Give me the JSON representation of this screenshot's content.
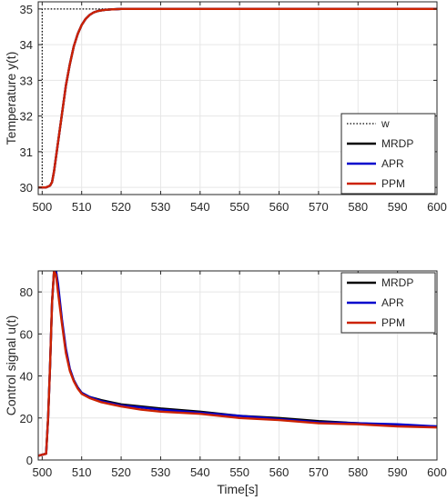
{
  "chart_data": [
    {
      "type": "line",
      "xlabel": "",
      "ylabel": "Temperature y(t)",
      "xlim": [
        499,
        600
      ],
      "ylim": [
        29.8,
        35.2
      ],
      "xticks": [
        500,
        510,
        520,
        530,
        540,
        550,
        560,
        570,
        580,
        590,
        600
      ],
      "yticks": [
        30,
        31,
        32,
        33,
        34,
        35
      ],
      "grid": true,
      "legend_position": "right",
      "series": [
        {
          "name": "w",
          "color": "#000000",
          "style": "dotted",
          "x": [
            499,
            500,
            500,
            600
          ],
          "y": [
            30,
            30,
            35,
            35
          ]
        },
        {
          "name": "MRDP",
          "color": "#000000",
          "style": "solid",
          "x": [
            499,
            501,
            502,
            502.5,
            503,
            504,
            505,
            506,
            507,
            508,
            509,
            510,
            511,
            512,
            513,
            514,
            515,
            516,
            518,
            520,
            525,
            530,
            540,
            550,
            560,
            570,
            580,
            590,
            600
          ],
          "y": [
            30,
            30,
            30.05,
            30.15,
            30.45,
            31.25,
            32.05,
            32.85,
            33.45,
            33.95,
            34.3,
            34.55,
            34.72,
            34.83,
            34.9,
            34.94,
            34.96,
            34.975,
            34.99,
            35,
            35,
            35,
            35,
            35,
            35,
            35,
            35,
            35,
            35
          ]
        },
        {
          "name": "APR",
          "color": "#0000cc",
          "style": "solid",
          "x": [
            499,
            501,
            502,
            502.5,
            503,
            504,
            505,
            506,
            507,
            508,
            509,
            510,
            511,
            512,
            513,
            514,
            515,
            516,
            518,
            520,
            525,
            530,
            540,
            550,
            560,
            570,
            580,
            590,
            600
          ],
          "y": [
            30,
            30,
            30.05,
            30.15,
            30.45,
            31.25,
            32.05,
            32.85,
            33.45,
            33.95,
            34.3,
            34.55,
            34.72,
            34.83,
            34.9,
            34.94,
            34.96,
            34.975,
            34.99,
            35,
            35,
            35,
            35,
            35,
            35,
            35,
            35,
            35,
            35
          ]
        },
        {
          "name": "PPM",
          "color": "#cc2200",
          "style": "solid",
          "x": [
            499,
            501,
            502,
            502.5,
            503,
            504,
            505,
            506,
            507,
            508,
            509,
            510,
            511,
            512,
            513,
            514,
            515,
            516,
            518,
            520,
            525,
            530,
            540,
            550,
            560,
            570,
            580,
            590,
            600
          ],
          "y": [
            30,
            30,
            30.05,
            30.15,
            30.45,
            31.25,
            32.05,
            32.85,
            33.45,
            33.95,
            34.3,
            34.55,
            34.72,
            34.83,
            34.9,
            34.94,
            34.96,
            34.975,
            34.99,
            35,
            35,
            35,
            35,
            35,
            35,
            35,
            35,
            35,
            35
          ]
        }
      ]
    },
    {
      "type": "line",
      "xlabel": "Time[s]",
      "ylabel": "Control signal u(t)",
      "xlim": [
        499,
        600
      ],
      "ylim": [
        0,
        90
      ],
      "xticks": [
        500,
        510,
        520,
        530,
        540,
        550,
        560,
        570,
        580,
        590,
        600
      ],
      "yticks": [
        0,
        20,
        40,
        60,
        80
      ],
      "grid": true,
      "legend_position": "top-right",
      "series": [
        {
          "name": "MRDP",
          "color": "#000000",
          "style": "solid",
          "x": [
            499,
            500,
            501,
            501.5,
            502,
            502.5,
            503,
            503.5,
            504,
            505,
            506,
            507,
            508,
            509,
            510,
            512,
            515,
            520,
            525,
            530,
            540,
            550,
            560,
            570,
            580,
            590,
            600
          ],
          "y": [
            2,
            2.5,
            3,
            20,
            45,
            75,
            90,
            90,
            82,
            66,
            52,
            43,
            38,
            34.5,
            32,
            30,
            28.5,
            26.5,
            25.5,
            24.5,
            23,
            21,
            20,
            18.5,
            17.5,
            16.5,
            16
          ]
        },
        {
          "name": "APR",
          "color": "#0000cc",
          "style": "solid",
          "x": [
            499,
            500,
            501,
            501.5,
            502,
            502.5,
            503,
            503.5,
            504,
            505,
            506,
            507,
            508,
            509,
            510,
            512,
            515,
            520,
            525,
            530,
            540,
            550,
            560,
            570,
            580,
            590,
            600
          ],
          "y": [
            2,
            2.5,
            3,
            20,
            45,
            75,
            90,
            90,
            84,
            67,
            53,
            43.5,
            38,
            34.5,
            32,
            30,
            28,
            26,
            25,
            24,
            22.5,
            21,
            19.5,
            18,
            17.5,
            17,
            16
          ]
        },
        {
          "name": "PPM",
          "color": "#cc2200",
          "style": "solid",
          "x": [
            499,
            500,
            501,
            501.5,
            502,
            502.5,
            503,
            503.5,
            504,
            505,
            506,
            507,
            508,
            509,
            510,
            512,
            515,
            520,
            525,
            530,
            540,
            550,
            560,
            570,
            580,
            590,
            600
          ],
          "y": [
            2,
            2.5,
            3,
            20,
            45,
            75,
            90,
            88,
            80,
            65,
            51,
            42.5,
            37.5,
            34,
            31.5,
            29.5,
            27.5,
            25.5,
            24,
            23,
            22,
            20,
            19,
            17.5,
            17,
            16,
            15.5
          ]
        }
      ]
    }
  ]
}
